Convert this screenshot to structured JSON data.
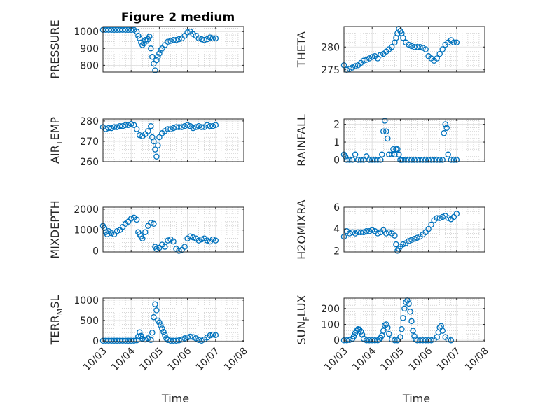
{
  "figure": {
    "title": "Figure 2 medium"
  },
  "colors": {
    "marker": "#0072BD",
    "axis": "#262626",
    "grid": "#bdbdbd"
  },
  "chart_data": [
    {
      "type": "scatter",
      "marker": "open-circle",
      "panel": "top-left",
      "title": "Figure 2 medium",
      "xlabel": "",
      "ylabel": "PRESSURE",
      "ylim": [
        760,
        1030
      ],
      "yticks": [
        800,
        900,
        1000
      ],
      "xlim": [
        0,
        5
      ],
      "xtick_labels": [],
      "grid": true,
      "x": [
        0.0,
        0.1,
        0.2,
        0.3,
        0.4,
        0.5,
        0.6,
        0.7,
        0.8,
        0.9,
        1.0,
        1.1,
        1.2,
        1.25,
        1.3,
        1.35,
        1.4,
        1.45,
        1.5,
        1.55,
        1.6,
        1.65,
        1.7,
        1.75,
        1.8,
        1.85,
        1.9,
        1.95,
        2.0,
        2.05,
        2.1,
        2.2,
        2.3,
        2.4,
        2.5,
        2.6,
        2.7,
        2.8,
        2.9,
        3.0,
        3.1,
        3.2,
        3.3,
        3.4,
        3.5,
        3.6,
        3.7,
        3.8,
        3.9,
        4.0
      ],
      "y": [
        1010,
        1010,
        1010,
        1010,
        1010,
        1010,
        1010,
        1010,
        1010,
        1010,
        1010,
        1010,
        1000,
        975,
        960,
        935,
        920,
        930,
        950,
        945,
        955,
        970,
        900,
        850,
        810,
        770,
        830,
        850,
        870,
        890,
        900,
        920,
        940,
        945,
        950,
        950,
        955,
        960,
        975,
        995,
        1000,
        985,
        975,
        960,
        955,
        950,
        955,
        965,
        960,
        960
      ]
    },
    {
      "type": "scatter",
      "marker": "open-circle",
      "panel": "top-right",
      "xlabel": "",
      "ylabel": "THETA",
      "ylim": [
        274.5,
        284.5
      ],
      "yticks": [
        275,
        280
      ],
      "xlim": [
        0,
        5
      ],
      "xtick_labels": [],
      "grid": true,
      "x": [
        0.0,
        0.1,
        0.2,
        0.3,
        0.4,
        0.5,
        0.6,
        0.7,
        0.8,
        0.9,
        1.0,
        1.1,
        1.2,
        1.3,
        1.4,
        1.5,
        1.6,
        1.7,
        1.8,
        1.85,
        1.9,
        1.95,
        2.0,
        2.05,
        2.1,
        2.2,
        2.3,
        2.4,
        2.5,
        2.6,
        2.7,
        2.8,
        2.9,
        3.0,
        3.1,
        3.2,
        3.3,
        3.4,
        3.5,
        3.6,
        3.7,
        3.8,
        3.9,
        4.0
      ],
      "y": [
        276,
        275,
        275.2,
        275.5,
        275.8,
        276,
        276.5,
        277,
        277.2,
        277.5,
        277.8,
        278,
        277.5,
        278.3,
        278.5,
        279,
        279.5,
        280,
        281,
        282,
        283,
        284,
        283.5,
        283,
        282,
        281,
        280.5,
        280.2,
        280,
        280,
        280,
        279.8,
        279.5,
        278,
        277.5,
        277,
        277.5,
        278.5,
        279.5,
        280.5,
        281,
        281.5,
        281,
        281
      ]
    },
    {
      "type": "scatter",
      "marker": "open-circle",
      "panel": "second-left",
      "xlabel": "",
      "ylabel": "AIR_TEMP",
      "ylabel_display": "AIRTEMP",
      "ylim": [
        260,
        281
      ],
      "yticks": [
        260,
        270,
        280
      ],
      "xlim": [
        0,
        5
      ],
      "xtick_labels": [],
      "grid": true,
      "x": [
        0.0,
        0.1,
        0.2,
        0.3,
        0.4,
        0.5,
        0.6,
        0.7,
        0.8,
        0.9,
        1.0,
        1.1,
        1.2,
        1.3,
        1.4,
        1.5,
        1.6,
        1.7,
        1.75,
        1.8,
        1.85,
        1.9,
        1.95,
        2.0,
        2.1,
        2.2,
        2.3,
        2.4,
        2.5,
        2.6,
        2.7,
        2.8,
        2.9,
        3.0,
        3.1,
        3.2,
        3.3,
        3.4,
        3.5,
        3.6,
        3.7,
        3.8,
        3.9,
        4.0
      ],
      "y": [
        277,
        276,
        276.5,
        276.5,
        277,
        277,
        277.5,
        277.5,
        278,
        278,
        278.5,
        278,
        276,
        273,
        272.5,
        273.5,
        275,
        277.5,
        272,
        270,
        266,
        262.5,
        268,
        272,
        274,
        275,
        276,
        276,
        276.5,
        277,
        277,
        277,
        277.5,
        278,
        277.5,
        276.5,
        277,
        277.5,
        277,
        277,
        278,
        277.5,
        277.5,
        278
      ]
    },
    {
      "type": "scatter",
      "marker": "open-circle",
      "panel": "second-right",
      "xlabel": "",
      "ylabel": "RAINFALL",
      "ylim": [
        -0.1,
        2.3
      ],
      "yticks": [
        0,
        1,
        2
      ],
      "xlim": [
        0,
        5
      ],
      "xtick_labels": [],
      "grid": true,
      "x": [
        0.0,
        0.05,
        0.1,
        0.2,
        0.3,
        0.4,
        0.5,
        0.6,
        0.7,
        0.8,
        0.9,
        1.0,
        1.1,
        1.2,
        1.3,
        1.35,
        1.4,
        1.45,
        1.5,
        1.55,
        1.6,
        1.7,
        1.75,
        1.8,
        1.85,
        1.9,
        1.95,
        2.0,
        2.05,
        2.1,
        2.2,
        2.3,
        2.4,
        2.5,
        2.6,
        2.7,
        2.8,
        2.9,
        3.0,
        3.1,
        3.2,
        3.3,
        3.4,
        3.5,
        3.55,
        3.6,
        3.65,
        3.7,
        3.8,
        3.9,
        4.0
      ],
      "y": [
        0.3,
        0.2,
        0,
        0,
        0,
        0.3,
        0,
        0,
        0,
        0.2,
        0,
        0,
        0,
        0,
        0,
        0.3,
        1.6,
        2.2,
        1.6,
        1.2,
        0.3,
        0.3,
        0.6,
        0.3,
        0.6,
        0.6,
        0.3,
        0,
        0,
        0,
        0,
        0,
        0,
        0,
        0,
        0,
        0,
        0,
        0,
        0,
        0,
        0,
        0,
        0,
        1.5,
        2.0,
        1.8,
        0.3,
        0,
        0,
        0
      ]
    },
    {
      "type": "scatter",
      "marker": "open-circle",
      "panel": "third-left",
      "xlabel": "",
      "ylabel": "MIXDEPTH",
      "ylim": [
        -50,
        2100
      ],
      "yticks": [
        0,
        1000,
        2000
      ],
      "xlim": [
        0,
        5
      ],
      "xtick_labels": [],
      "grid": true,
      "x": [
        0.0,
        0.05,
        0.1,
        0.15,
        0.2,
        0.3,
        0.4,
        0.5,
        0.6,
        0.7,
        0.8,
        0.9,
        1.0,
        1.1,
        1.2,
        1.25,
        1.3,
        1.35,
        1.4,
        1.5,
        1.6,
        1.7,
        1.8,
        1.85,
        1.9,
        2.0,
        2.1,
        2.2,
        2.3,
        2.4,
        2.5,
        2.6,
        2.7,
        2.8,
        2.9,
        3.0,
        3.1,
        3.2,
        3.3,
        3.4,
        3.5,
        3.6,
        3.7,
        3.8,
        3.9,
        4.0
      ],
      "y": [
        1200,
        1100,
        900,
        800,
        950,
        850,
        800,
        950,
        1000,
        1150,
        1300,
        1400,
        1550,
        1600,
        1500,
        900,
        800,
        700,
        600,
        900,
        1200,
        1350,
        1300,
        200,
        100,
        150,
        300,
        200,
        500,
        550,
        450,
        100,
        0,
        50,
        200,
        600,
        700,
        650,
        600,
        500,
        550,
        600,
        500,
        450,
        550,
        500
      ]
    },
    {
      "type": "scatter",
      "marker": "open-circle",
      "panel": "third-right",
      "xlabel": "",
      "ylabel": "H2OMIXRA",
      "ylim": [
        1.9,
        6
      ],
      "yticks": [
        2,
        4,
        6
      ],
      "xlim": [
        0,
        5
      ],
      "xtick_labels": [],
      "grid": true,
      "x": [
        0.0,
        0.1,
        0.2,
        0.3,
        0.4,
        0.5,
        0.6,
        0.7,
        0.8,
        0.9,
        1.0,
        1.1,
        1.2,
        1.3,
        1.4,
        1.5,
        1.6,
        1.7,
        1.8,
        1.85,
        1.9,
        1.95,
        2.0,
        2.1,
        2.2,
        2.3,
        2.4,
        2.5,
        2.6,
        2.7,
        2.8,
        2.9,
        3.0,
        3.1,
        3.2,
        3.3,
        3.4,
        3.5,
        3.6,
        3.7,
        3.8,
        3.9,
        4.0
      ],
      "y": [
        3.3,
        3.8,
        3.6,
        3.7,
        3.6,
        3.7,
        3.7,
        3.7,
        3.8,
        3.8,
        3.9,
        3.8,
        3.6,
        3.7,
        3.9,
        3.6,
        3.7,
        3.6,
        3.4,
        2.6,
        2.0,
        2.2,
        2.4,
        2.6,
        2.7,
        2.9,
        3.0,
        3.1,
        3.2,
        3.3,
        3.5,
        3.7,
        4.0,
        4.4,
        4.8,
        5.0,
        5.0,
        5.1,
        5.2,
        5.0,
        4.9,
        5.1,
        5.4
      ]
    },
    {
      "type": "scatter",
      "marker": "open-circle",
      "panel": "bottom-left",
      "xlabel": "Time",
      "ylabel": "TERR_MSL",
      "ylabel_display": "TERRMSL",
      "ylim": [
        -20,
        1050
      ],
      "yticks": [
        0,
        500,
        1000
      ],
      "xlim": [
        0,
        5
      ],
      "xtick_labels": [
        "10/03",
        "10/04",
        "10/05",
        "10/06",
        "10/07",
        "10/08"
      ],
      "grid": true,
      "x": [
        0.0,
        0.1,
        0.2,
        0.3,
        0.4,
        0.5,
        0.6,
        0.7,
        0.8,
        0.9,
        1.0,
        1.1,
        1.2,
        1.25,
        1.3,
        1.35,
        1.4,
        1.5,
        1.6,
        1.7,
        1.75,
        1.8,
        1.85,
        1.9,
        1.95,
        2.0,
        2.05,
        2.1,
        2.15,
        2.2,
        2.25,
        2.3,
        2.4,
        2.5,
        2.6,
        2.7,
        2.8,
        2.9,
        3.0,
        3.1,
        3.2,
        3.3,
        3.4,
        3.5,
        3.6,
        3.7,
        3.8,
        3.9,
        4.0
      ],
      "y": [
        0,
        0,
        0,
        0,
        0,
        0,
        0,
        0,
        0,
        0,
        0,
        0,
        10,
        100,
        210,
        120,
        50,
        30,
        60,
        20,
        200,
        580,
        900,
        750,
        500,
        450,
        380,
        300,
        220,
        140,
        60,
        20,
        0,
        0,
        0,
        10,
        30,
        60,
        80,
        100,
        90,
        60,
        20,
        0,
        30,
        80,
        130,
        150,
        140
      ]
    },
    {
      "type": "scatter",
      "marker": "open-circle",
      "panel": "bottom-right",
      "xlabel": "Time",
      "ylabel": "SUN_FLUX",
      "ylabel_display": "SUNFLUX",
      "ylim": [
        -8,
        265
      ],
      "yticks": [
        0,
        100,
        200
      ],
      "xlim": [
        0,
        5
      ],
      "xtick_labels": [
        "10/03",
        "10/04",
        "10/05",
        "10/06",
        "10/07",
        "10/08"
      ],
      "grid": true,
      "x": [
        0.0,
        0.1,
        0.2,
        0.3,
        0.35,
        0.4,
        0.45,
        0.5,
        0.55,
        0.6,
        0.65,
        0.7,
        0.8,
        0.9,
        1.0,
        1.1,
        1.2,
        1.25,
        1.3,
        1.35,
        1.4,
        1.45,
        1.5,
        1.55,
        1.6,
        1.7,
        1.8,
        1.9,
        2.0,
        2.05,
        2.1,
        2.15,
        2.2,
        2.25,
        2.3,
        2.35,
        2.4,
        2.45,
        2.5,
        2.55,
        2.6,
        2.7,
        2.8,
        2.9,
        3.0,
        3.1,
        3.2,
        3.3,
        3.35,
        3.4,
        3.45,
        3.5,
        3.6,
        3.7,
        3.8
      ],
      "y": [
        0,
        0,
        2,
        10,
        25,
        45,
        60,
        70,
        68,
        55,
        35,
        10,
        0,
        0,
        0,
        0,
        0,
        5,
        15,
        30,
        60,
        95,
        100,
        80,
        40,
        5,
        0,
        0,
        20,
        70,
        140,
        200,
        240,
        250,
        230,
        180,
        120,
        60,
        25,
        5,
        0,
        0,
        0,
        0,
        0,
        0,
        5,
        20,
        50,
        80,
        90,
        60,
        20,
        5,
        0
      ]
    }
  ]
}
